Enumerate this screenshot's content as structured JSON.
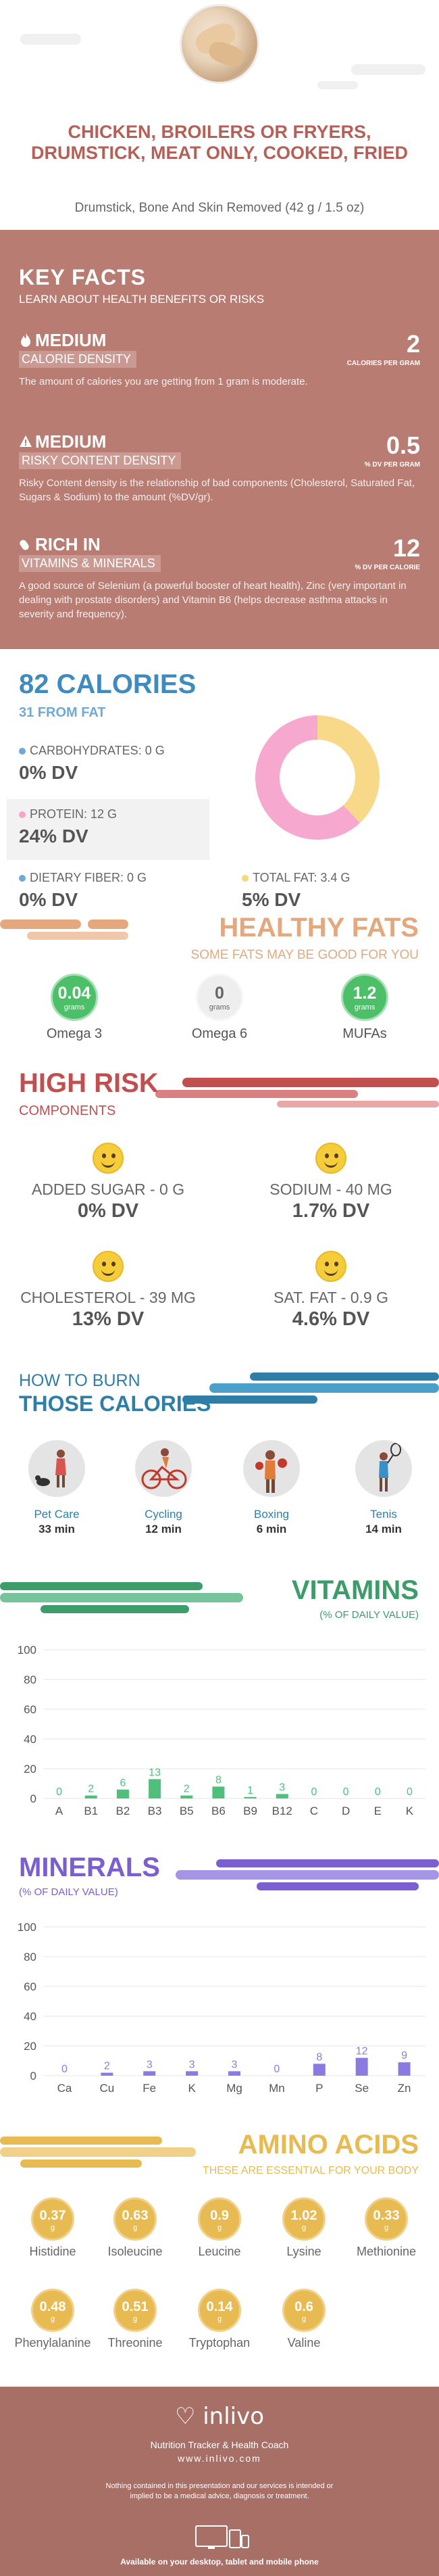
{
  "header": {
    "title": "CHICKEN, BROILERS OR FRYERS, DRUMSTICK, MEAT ONLY, COOKED, FRIED",
    "serving": "Drumstick, Bone And Skin Removed (42 g / 1.5 oz)"
  },
  "key_facts": {
    "title": "KEY FACTS",
    "subtitle": "LEARN ABOUT HEALTH BENEFITS OR RISKS",
    "items": [
      {
        "level": "MEDIUM",
        "category": "CALORIE DENSITY",
        "value": "2",
        "unit": "CALORIES PER GRAM",
        "description": "The amount of calories you are getting from 1 gram is moderate.",
        "icon": "flame-icon"
      },
      {
        "level": "MEDIUM",
        "category": "RISKY CONTENT DENSITY",
        "value": "0.5",
        "unit": "% DV PER GRAM",
        "description": "Risky Content density is the relationship of bad components (Cholesterol, Saturated Fat, Sugars & Sodium) to the amount (%DV/gr).",
        "icon": "warning-icon"
      },
      {
        "level": "RICH  IN",
        "category": "VITAMINS & MINERALS",
        "value": "12",
        "unit": "% DV PER CALORIE",
        "description": "A good source of Selenium (a powerful booster of heart health), Zinc (very important in dealing with prostate disorders) and Vitamin B6 (helps decrease asthma attacks in severity and frequency).",
        "icon": "pill-icon"
      }
    ]
  },
  "calories": {
    "title": "82 CALORIES",
    "from_fat": "31 FROM FAT",
    "macros": [
      {
        "label": "CARBOHYDRATES: 0 g",
        "dv": "0% DV",
        "color": "#6fa9d4"
      },
      {
        "label": "PROTEIN: 12 g",
        "dv": "24% DV",
        "color": "#f4a6c8"
      },
      {
        "label": "DIETARY FIBER: 0 g",
        "dv": "0% DV",
        "color": "#6fa9d4"
      },
      {
        "label": "TOTAL FAT: 3.4 g",
        "dv": "5% DV",
        "color": "#f7d77a"
      }
    ],
    "donut": {
      "protein_share": 0.62,
      "fat_share": 0.38,
      "protein_color": "#f7a8cf",
      "fat_color": "#f8d98a"
    }
  },
  "healthy_fats": {
    "title": "HEALTHY FATS",
    "subtitle": "SOME FATS MAY BE GOOD FOR YOU",
    "items": [
      {
        "value": "0.04",
        "unit": "grams",
        "name": "Omega 3",
        "color": "#4cbf68"
      },
      {
        "value": "0",
        "unit": "grams",
        "name": "Omega 6",
        "color": "#eeeeee"
      },
      {
        "value": "1.2",
        "unit": "grams",
        "name": "MUFAs",
        "color": "#4cbf68"
      }
    ]
  },
  "high_risk": {
    "title": "HIGH RISK",
    "subtitle": "COMPONENTS",
    "items": [
      {
        "label": "ADDED SUGAR - 0 g",
        "dv": "0% DV",
        "icon": "smiley-icon"
      },
      {
        "label": "SODIUM - 40 mg",
        "dv": "1.7% DV",
        "icon": "smiley-icon"
      },
      {
        "label": "CHOLESTEROL - 39 mg",
        "dv": "13% DV",
        "icon": "smiley-icon"
      },
      {
        "label": "SAT. FAT - 0.9 g",
        "dv": "4.6% DV",
        "icon": "smiley-icon"
      }
    ]
  },
  "burn": {
    "subtitle": "HOW TO BURN",
    "title": "THOSE CALORIES",
    "activities": [
      {
        "name": "Pet Care",
        "time": "33 min",
        "icon": "dog-walking-icon"
      },
      {
        "name": "Cycling",
        "time": "12 min",
        "icon": "cycling-icon"
      },
      {
        "name": "Boxing",
        "time": "6 min",
        "icon": "boxing-icon"
      },
      {
        "name": "Tenis",
        "time": "14 min",
        "icon": "tennis-icon"
      }
    ]
  },
  "vitamins": {
    "title": "VITAMINS",
    "subtitle": "(% OF DAILY VALUE)"
  },
  "minerals": {
    "title": "MINERALS",
    "subtitle": "(% OF DAILY VALUE)"
  },
  "chart_data": [
    {
      "type": "bar",
      "title": "VITAMINS",
      "ylabel": "(% OF DAILY VALUE)",
      "categories": [
        "A",
        "B1",
        "B2",
        "B3",
        "B5",
        "B6",
        "B9",
        "B12",
        "C",
        "D",
        "E",
        "K"
      ],
      "values": [
        0,
        2,
        6,
        13,
        2,
        8,
        1,
        3,
        0,
        0,
        0,
        0
      ],
      "yticks": [
        0,
        20,
        40,
        60,
        80,
        100
      ],
      "ylim": [
        0,
        100
      ],
      "grid": true,
      "color": "#4fbf7c"
    },
    {
      "type": "bar",
      "title": "MINERALS",
      "ylabel": "(% OF DAILY VALUE)",
      "categories": [
        "Ca",
        "Cu",
        "Fe",
        "K",
        "Mg",
        "Mn",
        "P",
        "Se",
        "Zn"
      ],
      "values": [
        0,
        2,
        3,
        3,
        3,
        0,
        8,
        12,
        9
      ],
      "yticks": [
        0,
        20,
        40,
        60,
        80,
        100
      ],
      "ylim": [
        0,
        100
      ],
      "grid": true,
      "color": "#8b7be0"
    }
  ],
  "amino_acids": {
    "title": "AMINO ACIDS",
    "subtitle": "THESE ARE ESSENTIAL FOR YOUR BODY",
    "unit": "g",
    "items": [
      {
        "value": "0.37",
        "name": "Histidine"
      },
      {
        "value": "0.63",
        "name": "Isoleucine"
      },
      {
        "value": "0.9",
        "name": "Leucine"
      },
      {
        "value": "1.02",
        "name": "Lysine"
      },
      {
        "value": "0.33",
        "name": "Methionine"
      },
      {
        "value": "0.48",
        "name": "Phenylalanine"
      },
      {
        "value": "0.51",
        "name": "Threonine"
      },
      {
        "value": "0.14",
        "name": "Tryptophan"
      },
      {
        "value": "0.6",
        "name": "Valine"
      }
    ]
  },
  "footer": {
    "brand": "inlivo",
    "tagline": "Nutrition Tracker & Health Coach",
    "url": "www.inlivo.com",
    "disclaimer": "Nothing contained in this presentation and our services is intended or implied to be a medical advice, diagnosis or treatment.",
    "available": "Available on your desktop, tablet and mobile phone"
  },
  "colors": {
    "key_facts_bg": "#b87c72",
    "calories_accent": "#3f8bbf",
    "healthy_fats_accent": "#e4a87f",
    "high_risk_accent": "#c14f4f",
    "burn_accent": "#2e7ea8",
    "vitamins_accent": "#3c9d6b",
    "minerals_accent": "#7b5fd1",
    "amino_accent": "#e8bb52",
    "footer_bg": "#a86f67"
  }
}
